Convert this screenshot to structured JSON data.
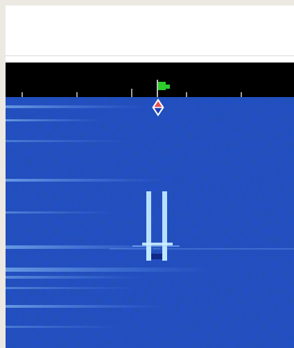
{
  "colors": {
    "ruler_bg": "#000000",
    "tick": "#d8d8d8",
    "flag": "#2dcc2d",
    "waterfall_base": "#1a3fb8",
    "signal": "#bfe8ff",
    "marker_fill": "#e25050"
  },
  "icons": {
    "flag": "green-flag-icon",
    "marker": "tuning-diamond-icon"
  }
}
